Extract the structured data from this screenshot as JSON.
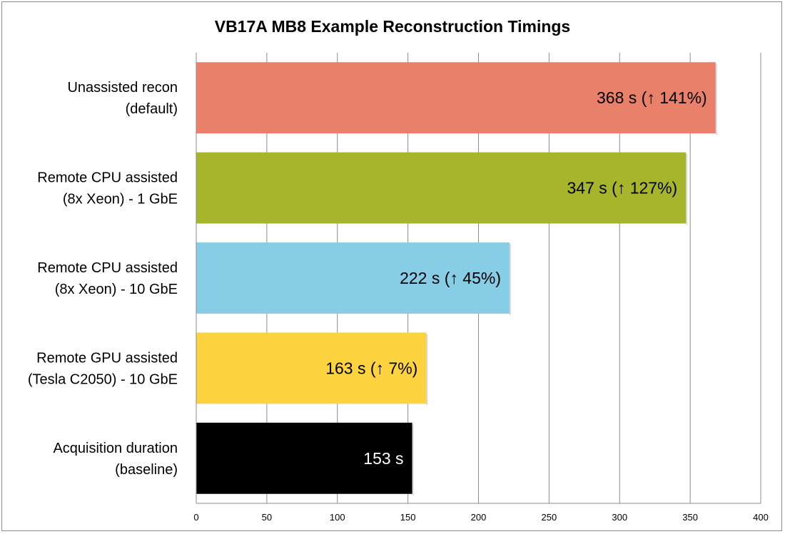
{
  "chart_data": {
    "type": "bar",
    "orientation": "horizontal",
    "title": "VB17A MB8 Example Reconstruction Timings",
    "xlabel": "",
    "ylabel": "",
    "xlim": [
      0,
      400
    ],
    "x_ticks": [
      0,
      50,
      100,
      150,
      200,
      250,
      300,
      350,
      400
    ],
    "grid": true,
    "legend": "none",
    "categories": [
      [
        "Unassisted recon",
        "(default)"
      ],
      [
        "Remote CPU assisted",
        "(8x Xeon) - 1 GbE"
      ],
      [
        "Remote CPU assisted",
        "(8x Xeon) - 10 GbE"
      ],
      [
        "Remote GPU assisted",
        "(Tesla C2050) - 10 GbE"
      ],
      [
        "Acquisition duration",
        "(baseline)"
      ]
    ],
    "values": [
      368,
      347,
      222,
      163,
      153
    ],
    "data_labels": [
      "368 s (↑ 141%)",
      "347 s (↑ 127%)",
      "222 s (↑ 45%)",
      "163 s (↑ 7%)",
      "153 s"
    ],
    "colors": [
      "#e8806a",
      "#a6b52c",
      "#87cde6",
      "#fdd33f",
      "#000000"
    ],
    "label_colors": [
      "#000000",
      "#000000",
      "#000000",
      "#000000",
      "#ffffff"
    ]
  }
}
